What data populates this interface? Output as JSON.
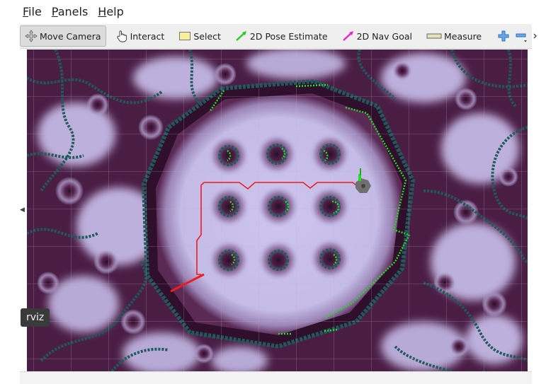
{
  "menu": {
    "file": "File",
    "panels": "Panels",
    "help": "Help"
  },
  "toolbar": {
    "tools": [
      {
        "id": "move-camera",
        "label": "Move Camera",
        "icon": "move-camera-icon",
        "active": true
      },
      {
        "id": "interact",
        "label": "Interact",
        "icon": "hand-pointer-icon",
        "active": false
      },
      {
        "id": "select",
        "label": "Select",
        "icon": "select-box-icon",
        "active": false
      },
      {
        "id": "pose-estimate",
        "label": "2D Pose Estimate",
        "icon": "green-arrow-icon",
        "active": false
      },
      {
        "id": "nav-goal",
        "label": "2D Nav Goal",
        "icon": "magenta-arrow-icon",
        "active": false
      },
      {
        "id": "measure",
        "label": "Measure",
        "icon": "ruler-icon",
        "active": false
      }
    ],
    "add_icon": "plus-icon",
    "remove_icon": "minus-icon",
    "more_icon": "more-chevron-icon"
  },
  "tooltip": "rviz",
  "colors": {
    "map_dark": "#3b1636",
    "map_light": "#c9c0ea",
    "obstacle": "#1e5a5a",
    "laser": "#22dd22",
    "path": "#ee1c1c",
    "accent": "#2f7fd8"
  }
}
